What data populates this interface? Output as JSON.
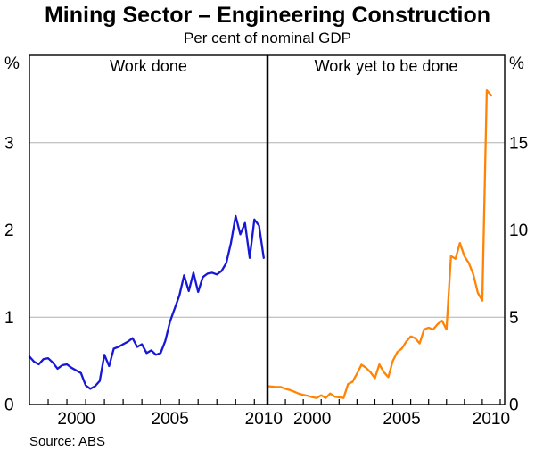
{
  "header": {
    "title": "Mining Sector – Engineering Construction",
    "subtitle": "Per cent of nominal GDP"
  },
  "footer": {
    "source": "Source: ABS"
  },
  "colors": {
    "work_done_line": "#1717d6",
    "work_yet_line": "#ff8406",
    "grid": "#b0b0b0",
    "frame": "#000000",
    "text": "#000000"
  },
  "chart_data": [
    {
      "type": "line",
      "title": "Work done",
      "unit": "%",
      "axis_side": "left",
      "color_key": "work_done_line",
      "xlim": [
        1997.5,
        2010.2
      ],
      "ylim": [
        0,
        4
      ],
      "yticks": [
        0,
        1,
        2,
        3
      ],
      "y_axis_symbol": "%",
      "xticks": [
        2000,
        2005,
        2010
      ],
      "grid": true,
      "x": [
        1997.5,
        1997.75,
        1998,
        1998.25,
        1998.5,
        1998.75,
        1999,
        1999.25,
        1999.5,
        1999.75,
        2000,
        2000.25,
        2000.5,
        2000.75,
        2001,
        2001.25,
        2001.5,
        2001.75,
        2002,
        2002.25,
        2002.5,
        2002.75,
        2003,
        2003.25,
        2003.5,
        2003.75,
        2004,
        2004.25,
        2004.5,
        2004.75,
        2005,
        2005.25,
        2005.5,
        2005.75,
        2006,
        2006.25,
        2006.5,
        2006.75,
        2007,
        2007.25,
        2007.5,
        2007.75,
        2008,
        2008.25,
        2008.5,
        2008.75,
        2009,
        2009.25,
        2009.5,
        2009.75,
        2010
      ],
      "values": [
        0.55,
        0.49,
        0.46,
        0.52,
        0.53,
        0.48,
        0.41,
        0.45,
        0.46,
        0.42,
        0.39,
        0.36,
        0.22,
        0.18,
        0.21,
        0.27,
        0.57,
        0.44,
        0.64,
        0.66,
        0.69,
        0.72,
        0.76,
        0.66,
        0.69,
        0.59,
        0.62,
        0.57,
        0.59,
        0.73,
        0.95,
        1.1,
        1.25,
        1.48,
        1.3,
        1.51,
        1.29,
        1.46,
        1.5,
        1.51,
        1.49,
        1.53,
        1.62,
        1.85,
        2.16,
        1.95,
        2.08,
        1.68,
        2.12,
        2.05,
        1.68
      ]
    },
    {
      "type": "line",
      "title": "Work yet to be done",
      "unit": "%",
      "axis_side": "right",
      "color_key": "work_yet_line",
      "xlim": [
        1997.5,
        2010.75
      ],
      "ylim": [
        0,
        20
      ],
      "yticks": [
        0,
        5,
        10,
        15
      ],
      "y_axis_symbol": "%",
      "xticks": [
        2000,
        2005,
        2010
      ],
      "grid": true,
      "x": [
        1997.5,
        1997.75,
        1998,
        1998.25,
        1998.5,
        1998.75,
        1999,
        1999.25,
        1999.5,
        1999.75,
        2000,
        2000.25,
        2000.5,
        2000.75,
        2001,
        2001.25,
        2001.5,
        2001.75,
        2002,
        2002.25,
        2002.5,
        2002.75,
        2003,
        2003.25,
        2003.5,
        2003.75,
        2004,
        2004.25,
        2004.5,
        2004.75,
        2005,
        2005.25,
        2005.5,
        2005.75,
        2006,
        2006.25,
        2006.5,
        2006.75,
        2007,
        2007.25,
        2007.5,
        2007.75,
        2008,
        2008.25,
        2008.5,
        2008.75,
        2009,
        2009.25,
        2009.5,
        2009.75,
        2010
      ],
      "values": [
        1.05,
        1.03,
        1.0,
        1.0,
        0.9,
        0.83,
        0.73,
        0.62,
        0.55,
        0.5,
        0.42,
        0.37,
        0.53,
        0.37,
        0.63,
        0.45,
        0.41,
        0.37,
        1.17,
        1.3,
        1.77,
        2.28,
        2.11,
        1.85,
        1.51,
        2.3,
        1.85,
        1.57,
        2.5,
        3.0,
        3.2,
        3.6,
        3.9,
        3.8,
        3.5,
        4.3,
        4.4,
        4.3,
        4.6,
        4.8,
        4.3,
        8.5,
        8.35,
        9.25,
        8.5,
        8.1,
        7.45,
        6.4,
        5.95,
        18.0,
        17.7
      ]
    }
  ]
}
